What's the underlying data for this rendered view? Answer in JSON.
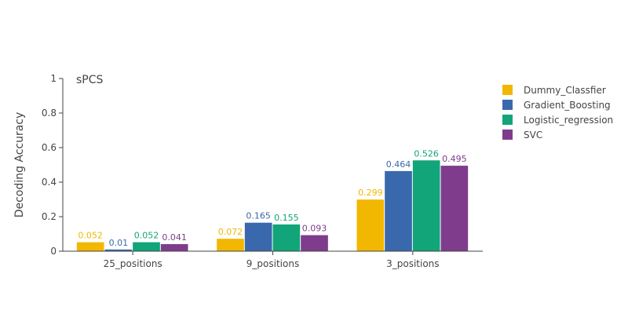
{
  "chart_data": {
    "type": "bar",
    "annotation": "sPCS",
    "xlabel": "",
    "ylabel": "Decoding Accuracy",
    "ylim": [
      0,
      1
    ],
    "yticks": [
      0,
      0.2,
      0.4,
      0.6,
      0.8,
      1
    ],
    "ytick_labels": [
      "0",
      "0.2",
      "0.4",
      "0.6",
      "0.8",
      "1"
    ],
    "categories": [
      "25_positions",
      "9_positions",
      "3_positions"
    ],
    "legend_position": "right",
    "grid": false,
    "series": [
      {
        "name": "Dummy_Classfier",
        "color": "#f2b701",
        "values": [
          0.052,
          0.072,
          0.299
        ],
        "labels": [
          "0.052",
          "0.072",
          "0.299"
        ]
      },
      {
        "name": "Gradient_Boosting",
        "color": "#3969ac",
        "values": [
          0.01,
          0.165,
          0.464
        ],
        "labels": [
          "0.01",
          "0.165",
          "0.464"
        ]
      },
      {
        "name": "Logistic_regression",
        "color": "#11a579",
        "values": [
          0.052,
          0.155,
          0.526
        ],
        "labels": [
          "0.052",
          "0.155",
          "0.526"
        ]
      },
      {
        "name": "SVC",
        "color": "#7f3c8d",
        "values": [
          0.041,
          0.093,
          0.495
        ],
        "labels": [
          "0.041",
          "0.093",
          "0.495"
        ]
      }
    ]
  }
}
